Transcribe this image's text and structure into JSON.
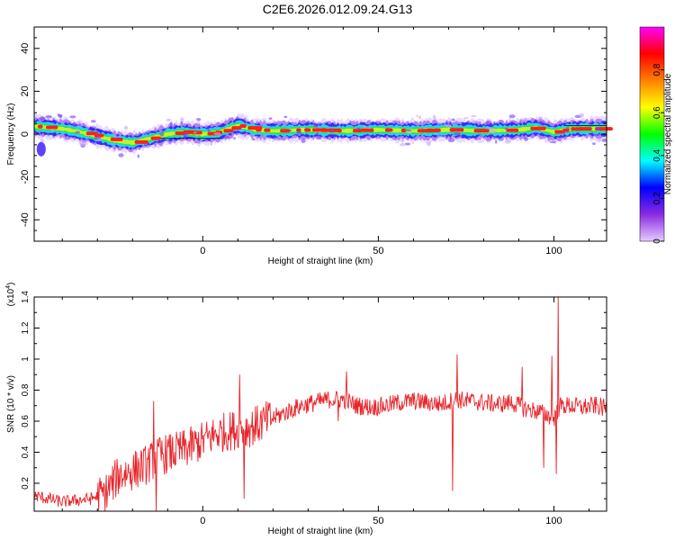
{
  "title": "C2E6.2026.012.09.24.G13",
  "colors": {
    "line": "#e8242a",
    "axis": "#000000",
    "colorbar_stops": [
      "#e6ccff",
      "#8a2be2",
      "#0000ff",
      "#00ffff",
      "#00ff00",
      "#ffff00",
      "#ff8000",
      "#ff0000",
      "#ff00ff"
    ]
  },
  "chart_data": [
    {
      "type": "heatmap",
      "xlabel": "Height of straight line (km)",
      "ylabel": "Frequency (Hz)",
      "xlim": [
        -48,
        115
      ],
      "ylim": [
        -50,
        50
      ],
      "x_ticks": [
        0,
        50,
        100
      ],
      "y_ticks": [
        -40,
        -20,
        0,
        20,
        40
      ],
      "colorbar": {
        "label": "Normalized spectral amplitude",
        "range": [
          0.0,
          1.0
        ],
        "ticks": [
          0.0,
          0.2,
          0.4,
          0.6,
          0.8
        ]
      },
      "ridge": {
        "x": [
          -47,
          -40,
          -35,
          -30,
          -25,
          -20,
          -15,
          -10,
          -5,
          0,
          5,
          10,
          15,
          20,
          30,
          40,
          50,
          60,
          70,
          80,
          90,
          95,
          100,
          105,
          115
        ],
        "y": [
          3.5,
          2.5,
          1,
          -1,
          -3,
          -4,
          -2,
          0,
          1,
          0,
          1,
          4,
          2,
          1.5,
          2,
          1.5,
          2,
          1.5,
          2,
          1.5,
          2,
          3,
          1,
          2.5,
          2.5
        ]
      }
    },
    {
      "type": "line",
      "xlabel": "Height of straight line (km)",
      "ylabel": "SNR (10 * v/v)",
      "y_multiplier": "(x10",
      "y_multiplier_exp": "4",
      "y_multiplier_close": ")",
      "xlim": [
        -48,
        115
      ],
      "ylim": [
        0.02,
        1.4
      ],
      "x_ticks": [
        0,
        50,
        100
      ],
      "y_ticks": [
        0.2,
        0.4,
        0.6,
        0.8,
        1.0,
        1.2,
        1.4
      ],
      "series": [
        {
          "x": [
            -48,
            -44,
            -40,
            -36,
            -32,
            -28,
            -24,
            -20,
            -16,
            -12,
            -8,
            -4,
            0,
            4,
            8,
            12,
            16,
            20,
            24,
            28,
            32,
            36,
            40,
            44,
            48,
            52,
            56,
            60,
            64,
            68,
            72,
            76,
            80,
            84,
            88,
            92,
            96,
            100,
            102,
            104,
            108,
            112,
            115
          ],
          "y": [
            0.12,
            0.1,
            0.08,
            0.09,
            0.1,
            0.13,
            0.25,
            0.28,
            0.32,
            0.38,
            0.4,
            0.43,
            0.47,
            0.52,
            0.54,
            0.55,
            0.58,
            0.62,
            0.66,
            0.7,
            0.72,
            0.74,
            0.74,
            0.7,
            0.69,
            0.7,
            0.72,
            0.73,
            0.72,
            0.71,
            0.74,
            0.73,
            0.72,
            0.71,
            0.72,
            0.68,
            0.66,
            0.62,
            0.7,
            0.7,
            0.69,
            0.7,
            0.68
          ],
          "spikes": [
            {
              "x": 10.5,
              "y": 0.9
            },
            {
              "x": 11.8,
              "y": 0.1
            },
            {
              "x": 72.5,
              "y": 1.03
            },
            {
              "x": 71.2,
              "y": 0.15
            },
            {
              "x": 97,
              "y": 0.3
            },
            {
              "x": 99.5,
              "y": 1.02
            },
            {
              "x": 100.6,
              "y": 0.26
            },
            {
              "x": 101.2,
              "y": 1.42
            },
            {
              "x": 41,
              "y": 0.92
            },
            {
              "x": 38.5,
              "y": 0.6
            },
            {
              "x": 91,
              "y": 0.95
            },
            {
              "x": -14,
              "y": 0.73
            },
            {
              "x": -13.2,
              "y": 0.02
            }
          ]
        }
      ]
    }
  ]
}
